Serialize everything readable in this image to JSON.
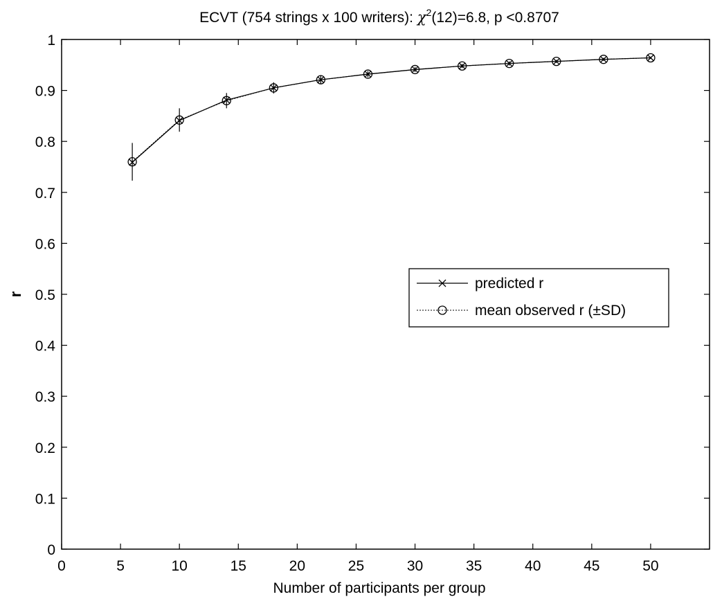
{
  "chart_data": {
    "type": "line",
    "title": {
      "prefix": "ECVT (754 strings x 100 writers): ",
      "chi": "χ",
      "sup": "2",
      "suffix": "(12)=6.8, p <0.8707"
    },
    "xlabel": "Number of participants per group",
    "ylabel": "r",
    "xlim": [
      0,
      55
    ],
    "ylim": [
      0,
      1
    ],
    "xticks": [
      0,
      5,
      10,
      15,
      20,
      25,
      30,
      35,
      40,
      45,
      50
    ],
    "yticks": [
      0,
      0.1,
      0.2,
      0.3,
      0.4,
      0.5,
      0.6,
      0.7,
      0.8,
      0.9,
      1
    ],
    "ytick_labels": [
      "0",
      "0.1",
      "0.2",
      "0.3",
      "0.4",
      "0.5",
      "0.6",
      "0.7",
      "0.8",
      "0.9",
      "1"
    ],
    "grid": false,
    "legend_position": "center-right",
    "series": [
      {
        "name": "predicted r",
        "marker": "x",
        "x": [
          6,
          10,
          14,
          18,
          22,
          26,
          30,
          34,
          38,
          42,
          46,
          50
        ],
        "y": [
          0.759,
          0.841,
          0.881,
          0.905,
          0.921,
          0.932,
          0.941,
          0.948,
          0.953,
          0.957,
          0.961,
          0.964
        ]
      },
      {
        "name": "mean observed r (±SD)",
        "marker": "o",
        "x": [
          6,
          10,
          14,
          18,
          22,
          26,
          30,
          34,
          38,
          42,
          46,
          50
        ],
        "y": [
          0.76,
          0.842,
          0.88,
          0.905,
          0.921,
          0.932,
          0.941,
          0.948,
          0.953,
          0.957,
          0.961,
          0.964
        ],
        "sd": [
          0.037,
          0.023,
          0.015,
          0.011,
          0.008,
          0.006,
          0.005,
          0.004,
          0.004,
          0.003,
          0.003,
          0.002
        ]
      }
    ]
  }
}
